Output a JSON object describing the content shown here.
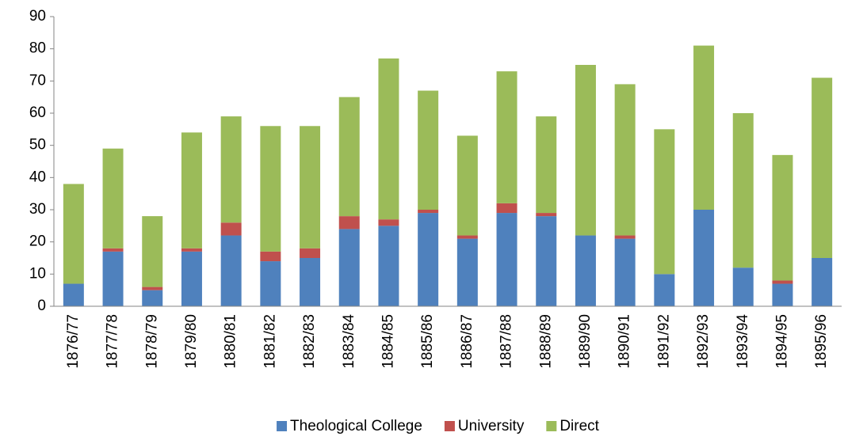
{
  "chart_data": {
    "type": "stacked_bar",
    "categories": [
      "1876/77",
      "1877/78",
      "1878/79",
      "1879/80",
      "1880/81",
      "1881/82",
      "1882/83",
      "1883/84",
      "1884/85",
      "1885/86",
      "1886/87",
      "1887/88",
      "1888/89",
      "1889/90",
      "1890/91",
      "1891/92",
      "1892/93",
      "1893/94",
      "1894/95",
      "1895/96"
    ],
    "series": [
      {
        "name": "Theological College",
        "color": "#4f81bd",
        "values": [
          7,
          17,
          5,
          17,
          22,
          14,
          15,
          24,
          25,
          29,
          21,
          29,
          28,
          22,
          21,
          10,
          30,
          12,
          7,
          15
        ]
      },
      {
        "name": "University",
        "color": "#c0504d",
        "values": [
          0,
          1,
          1,
          1,
          4,
          3,
          3,
          4,
          2,
          1,
          1,
          3,
          1,
          0,
          1,
          0,
          0,
          0,
          1,
          0
        ]
      },
      {
        "name": "Direct",
        "color": "#9bbb59",
        "values": [
          31,
          31,
          22,
          36,
          33,
          39,
          38,
          37,
          50,
          37,
          31,
          41,
          30,
          53,
          47,
          45,
          51,
          48,
          39,
          56
        ]
      }
    ],
    "ylim": [
      0,
      90
    ],
    "yticks": [
      0,
      10,
      20,
      30,
      40,
      50,
      60,
      70,
      80,
      90
    ],
    "legend": "bottom"
  }
}
